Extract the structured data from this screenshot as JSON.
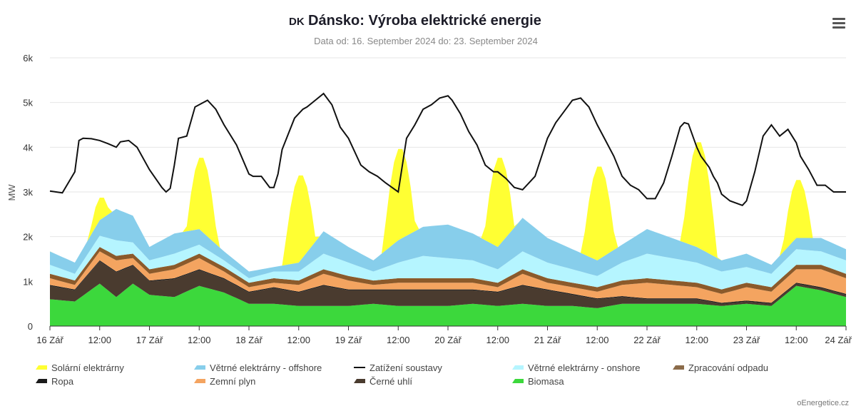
{
  "header": {
    "country_code": "DK",
    "title": "Dánsko: Výroba elektrické energie",
    "subtitle": "Data od: 16. September 2024 do: 23. September 2024",
    "credit": "oEnergetice.cz"
  },
  "chart_data": {
    "type": "area",
    "stacked": true,
    "ylabel": "MW",
    "ylim": [
      0,
      6000
    ],
    "yticks": [
      0,
      1000,
      2000,
      3000,
      4000,
      5000,
      6000
    ],
    "ytick_labels": [
      "0",
      "1k",
      "2k",
      "3k",
      "4k",
      "5k",
      "6k"
    ],
    "xlim": [
      0,
      192
    ],
    "x_unit": "hours from 16 Zář 00:00",
    "xticks": [
      0,
      12,
      24,
      36,
      48,
      60,
      72,
      84,
      96,
      108,
      120,
      132,
      144,
      156,
      168,
      180,
      192
    ],
    "xtick_labels": [
      "16 Zář",
      "12:00",
      "17 Zář",
      "12:00",
      "18 Zář",
      "12:00",
      "19 Zář",
      "12:00",
      "20 Zář",
      "12:00",
      "21 Zář",
      "12:00",
      "22 Zář",
      "12:00",
      "23 Zář",
      "12:00",
      "24 Zář"
    ],
    "grid": "horizontal",
    "legend_position": "bottom",
    "stack_order": [
      "Biomasa",
      "Černé uhlí",
      "Ropa",
      "Zemní plyn",
      "Zpracování odpadu",
      "Větrné elektrárny - onshore",
      "Větrné elektrárny - offshore",
      "Solární elektrárny"
    ],
    "series": [
      {
        "name": "Solární elektrárny",
        "color": "#ffff33",
        "legend_color": "#ffff33",
        "legend_row": 0,
        "legend_col": 0,
        "peak": [
          2900,
          3800,
          3400,
          4000,
          3800,
          3600,
          4150,
          3300
        ],
        "x": [
          0,
          6,
          9,
          12,
          15,
          18,
          192
        ],
        "daily_profile": [
          0,
          0,
          0.5,
          1,
          0.5,
          0,
          0
        ]
      },
      {
        "name": "Větrné elektrárny - offshore",
        "color": "#87ceeb",
        "legend_color": "#87ceeb",
        "legend_row": 0,
        "legend_col": 1,
        "x": [
          0,
          6,
          12,
          16,
          20,
          24,
          30,
          36,
          42,
          48,
          54,
          60,
          66,
          72,
          78,
          84,
          90,
          96,
          102,
          108,
          114,
          120,
          126,
          132,
          138,
          144,
          150,
          156,
          162,
          168,
          174,
          180,
          186,
          192
        ],
        "values": [
          300,
          250,
          350,
          700,
          600,
          300,
          450,
          350,
          200,
          150,
          100,
          200,
          500,
          350,
          250,
          500,
          650,
          750,
          600,
          500,
          750,
          550,
          450,
          350,
          400,
          550,
          450,
          350,
          250,
          300,
          200,
          250,
          300,
          250
        ]
      },
      {
        "name": "Zatížení soustavy",
        "color": "#111111",
        "legend_color": "#111111",
        "legend_row": 0,
        "legend_col": 2,
        "kind": "line",
        "x": [
          0,
          3,
          6,
          7,
          8,
          10,
          12,
          14,
          16,
          17,
          19,
          21,
          24,
          27,
          28,
          29,
          30,
          31,
          33,
          35,
          38,
          40,
          42,
          45,
          48,
          49,
          51,
          53,
          54,
          55,
          56,
          59,
          61,
          62,
          64,
          66,
          68,
          70,
          72,
          73,
          75,
          77,
          79,
          81,
          84,
          86,
          88,
          90,
          92,
          94,
          96,
          97,
          99,
          101,
          103,
          105,
          107,
          108,
          110,
          112,
          114,
          117,
          120,
          122,
          124,
          126,
          128,
          130,
          132,
          134,
          136,
          138,
          140,
          142,
          144,
          146,
          148,
          150,
          152,
          153,
          154,
          156,
          157,
          159,
          160,
          161,
          162,
          164,
          167,
          168,
          170,
          172,
          174,
          176,
          178,
          180,
          181,
          183,
          185,
          187,
          189,
          192
        ],
        "values": [
          3020,
          2980,
          3450,
          4150,
          4200,
          4190,
          4150,
          4080,
          4000,
          4120,
          4150,
          4000,
          3500,
          3100,
          3000,
          3080,
          3600,
          4200,
          4250,
          4900,
          5050,
          4850,
          4500,
          4050,
          3400,
          3350,
          3350,
          3100,
          3100,
          3400,
          3950,
          4650,
          4850,
          4900,
          5050,
          5200,
          4950,
          4450,
          4200,
          4000,
          3600,
          3450,
          3350,
          3200,
          3000,
          4200,
          4500,
          4850,
          4950,
          5100,
          5150,
          5050,
          4750,
          4350,
          4050,
          3600,
          3450,
          3450,
          3300,
          3100,
          3050,
          3350,
          4200,
          4550,
          4800,
          5050,
          5100,
          4900,
          4500,
          4150,
          3800,
          3350,
          3150,
          3050,
          2850,
          2850,
          3200,
          3800,
          4450,
          4550,
          4520,
          4000,
          3800,
          3550,
          3350,
          3200,
          2950,
          2800,
          2700,
          2800,
          3450,
          4250,
          4500,
          4250,
          4400,
          4100,
          3800,
          3500,
          3150,
          3150,
          3000,
          3000
        ],
        "note": "line drawn over stack"
      },
      {
        "name": "Větrné elektrárny - onshore",
        "color": "#b5f5ff",
        "legend_color": "#b5f5ff",
        "legend_row": 0,
        "legend_col": 3,
        "x": [
          0,
          6,
          12,
          16,
          20,
          24,
          30,
          36,
          42,
          48,
          54,
          60,
          66,
          72,
          78,
          84,
          90,
          96,
          102,
          108,
          114,
          120,
          126,
          132,
          138,
          144,
          150,
          156,
          162,
          168,
          174,
          180,
          186,
          192
        ],
        "values": [
          200,
          150,
          250,
          350,
          250,
          200,
          250,
          200,
          150,
          100,
          150,
          200,
          350,
          300,
          200,
          350,
          500,
          450,
          400,
          300,
          400,
          350,
          300,
          250,
          400,
          550,
          500,
          450,
          400,
          350,
          300,
          350,
          300,
          300
        ]
      },
      {
        "name": "Zpracování odpadu",
        "color": "#8b5a2b",
        "legend_color": "#8b6b4a",
        "legend_row": 0,
        "legend_col": 4,
        "x": [
          0,
          192
        ],
        "values": [
          100,
          100
        ]
      },
      {
        "name": "Ropa",
        "color": "#1a1a1a",
        "legend_color": "#1a1a1a",
        "legend_row": 1,
        "legend_col": 0,
        "x": [
          0,
          192
        ],
        "values": [
          20,
          20
        ]
      },
      {
        "name": "Zemní plyn",
        "color": "#f4a460",
        "legend_color": "#f4a460",
        "legend_row": 1,
        "legend_col": 1,
        "x": [
          0,
          6,
          12,
          16,
          20,
          24,
          30,
          36,
          42,
          48,
          54,
          60,
          66,
          72,
          78,
          84,
          90,
          96,
          102,
          108,
          114,
          120,
          126,
          132,
          138,
          144,
          150,
          156,
          162,
          168,
          174,
          180,
          186,
          192
        ],
        "values": [
          150,
          100,
          200,
          250,
          150,
          150,
          200,
          250,
          150,
          100,
          100,
          150,
          250,
          200,
          100,
          150,
          150,
          150,
          150,
          100,
          250,
          150,
          150,
          150,
          250,
          350,
          300,
          250,
          200,
          300,
          250,
          300,
          400,
          350
        ]
      },
      {
        "name": "Černé uhlí",
        "color": "#4a3b2f",
        "legend_color": "#4a3b2f",
        "legend_row": 1,
        "legend_col": 2,
        "x": [
          0,
          6,
          12,
          16,
          20,
          24,
          30,
          36,
          42,
          48,
          54,
          60,
          66,
          72,
          78,
          84,
          90,
          96,
          102,
          108,
          114,
          120,
          126,
          132,
          138,
          144,
          150,
          156,
          162,
          168,
          174,
          180,
          186,
          192
        ],
        "values": [
          300,
          250,
          500,
          550,
          400,
          300,
          400,
          350,
          300,
          250,
          350,
          300,
          450,
          350,
          300,
          350,
          350,
          350,
          300,
          300,
          400,
          350,
          250,
          200,
          150,
          100,
          100,
          100,
          50,
          50,
          50,
          50,
          50,
          50
        ]
      },
      {
        "name": "Biomasa",
        "color": "#3cd83c",
        "legend_color": "#3cd83c",
        "legend_row": 1,
        "legend_col": 3,
        "x": [
          0,
          6,
          12,
          16,
          20,
          24,
          30,
          36,
          42,
          48,
          54,
          60,
          66,
          72,
          78,
          84,
          90,
          96,
          102,
          108,
          114,
          120,
          126,
          132,
          138,
          144,
          150,
          156,
          162,
          168,
          174,
          180,
          186,
          192
        ],
        "values": [
          600,
          550,
          950,
          650,
          950,
          700,
          650,
          900,
          750,
          500,
          500,
          450,
          450,
          450,
          500,
          450,
          450,
          450,
          500,
          450,
          500,
          450,
          450,
          400,
          500,
          500,
          500,
          500,
          450,
          500,
          450,
          900,
          800,
          650
        ]
      }
    ]
  }
}
